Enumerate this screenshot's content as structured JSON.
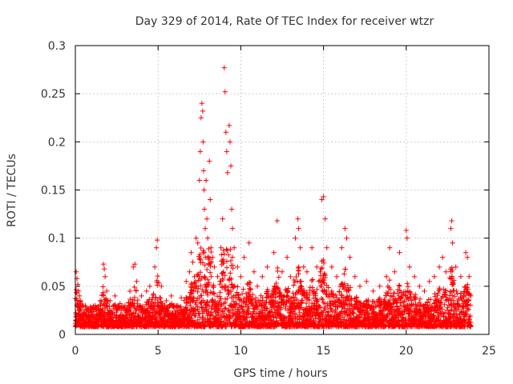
{
  "chart_data": {
    "type": "scatter",
    "title": "Day 329 of 2014, Rate Of TEC Index for receiver wtzr",
    "xlabel": "GPS time / hours",
    "ylabel": "ROTI / TECUs",
    "xlim": [
      0,
      25
    ],
    "ylim": [
      0,
      0.3
    ],
    "xticks": [
      0,
      5,
      10,
      15,
      20,
      25
    ],
    "xtick_labels": [
      "0",
      "5",
      "10",
      "15",
      "20",
      "25"
    ],
    "yticks": [
      0,
      0.05,
      0.1,
      0.15,
      0.2,
      0.25,
      0.3
    ],
    "ytick_labels": [
      "0",
      "0.05",
      "0.1",
      "0.15",
      "0.2",
      "0.25",
      "0.3"
    ],
    "grid": true,
    "marker": "+",
    "series": [
      {
        "name": "ROTI",
        "color": "#ff0000",
        "points": [
          [
            0.05,
            0.065
          ],
          [
            0.1,
            0.058
          ],
          [
            0.15,
            0.052
          ],
          [
            0.2,
            0.045
          ],
          [
            0.25,
            0.04
          ],
          [
            0.3,
            0.035
          ],
          [
            0.1,
            0.03
          ],
          [
            0.2,
            0.025
          ],
          [
            0.3,
            0.02
          ],
          [
            0.4,
            0.018
          ],
          [
            0.6,
            0.03
          ],
          [
            0.8,
            0.025
          ],
          [
            1.0,
            0.028
          ],
          [
            1.2,
            0.03
          ],
          [
            1.5,
            0.035
          ],
          [
            1.7,
            0.073
          ],
          [
            1.75,
            0.068
          ],
          [
            1.8,
            0.06
          ],
          [
            1.9,
            0.045
          ],
          [
            2.1,
            0.035
          ],
          [
            2.4,
            0.04
          ],
          [
            2.7,
            0.032
          ],
          [
            3.0,
            0.03
          ],
          [
            3.3,
            0.045
          ],
          [
            3.5,
            0.07
          ],
          [
            3.6,
            0.073
          ],
          [
            3.7,
            0.055
          ],
          [
            4.0,
            0.04
          ],
          [
            4.3,
            0.045
          ],
          [
            4.5,
            0.05
          ],
          [
            4.8,
            0.07
          ],
          [
            4.9,
            0.09
          ],
          [
            4.95,
            0.098
          ],
          [
            5.2,
            0.05
          ],
          [
            5.5,
            0.035
          ],
          [
            5.8,
            0.04
          ],
          [
            6.1,
            0.03
          ],
          [
            6.4,
            0.038
          ],
          [
            6.7,
            0.055
          ],
          [
            6.9,
            0.065
          ],
          [
            7.0,
            0.085
          ],
          [
            7.1,
            0.075
          ],
          [
            7.2,
            0.06
          ],
          [
            7.3,
            0.1
          ],
          [
            7.4,
            0.095
          ],
          [
            7.5,
            0.16
          ],
          [
            7.55,
            0.19
          ],
          [
            7.6,
            0.225
          ],
          [
            7.65,
            0.24
          ],
          [
            7.7,
            0.232
          ],
          [
            7.72,
            0.2
          ],
          [
            7.75,
            0.17
          ],
          [
            7.78,
            0.15
          ],
          [
            7.8,
            0.13
          ],
          [
            7.85,
            0.11
          ],
          [
            7.9,
            0.16
          ],
          [
            7.95,
            0.12
          ],
          [
            8.0,
            0.1
          ],
          [
            8.1,
            0.18
          ],
          [
            8.15,
            0.14
          ],
          [
            8.2,
            0.09
          ],
          [
            8.3,
            0.08
          ],
          [
            8.4,
            0.07
          ],
          [
            8.6,
            0.06
          ],
          [
            8.8,
            0.09
          ],
          [
            8.9,
            0.12
          ],
          [
            9.0,
            0.277
          ],
          [
            9.05,
            0.252
          ],
          [
            9.1,
            0.21
          ],
          [
            9.15,
            0.19
          ],
          [
            9.2,
            0.168
          ],
          [
            9.3,
            0.217
          ],
          [
            9.35,
            0.2
          ],
          [
            9.4,
            0.175
          ],
          [
            9.45,
            0.13
          ],
          [
            9.5,
            0.11
          ],
          [
            9.6,
            0.09
          ],
          [
            9.8,
            0.07
          ],
          [
            10.0,
            0.06
          ],
          [
            10.2,
            0.08
          ],
          [
            10.5,
            0.095
          ],
          [
            10.8,
            0.065
          ],
          [
            11.0,
            0.05
          ],
          [
            11.3,
            0.06
          ],
          [
            11.6,
            0.07
          ],
          [
            12.0,
            0.085
          ],
          [
            12.2,
            0.118
          ],
          [
            12.5,
            0.065
          ],
          [
            12.8,
            0.08
          ],
          [
            13.0,
            0.06
          ],
          [
            13.3,
            0.1
          ],
          [
            13.45,
            0.12
          ],
          [
            13.5,
            0.11
          ],
          [
            13.6,
            0.09
          ],
          [
            13.8,
            0.07
          ],
          [
            14.0,
            0.065
          ],
          [
            14.3,
            0.09
          ],
          [
            14.6,
            0.07
          ],
          [
            14.9,
            0.14
          ],
          [
            15.0,
            0.143
          ],
          [
            15.1,
            0.12
          ],
          [
            15.2,
            0.09
          ],
          [
            15.5,
            0.07
          ],
          [
            15.8,
            0.06
          ],
          [
            16.1,
            0.09
          ],
          [
            16.3,
            0.11
          ],
          [
            16.4,
            0.1
          ],
          [
            16.6,
            0.08
          ],
          [
            16.9,
            0.06
          ],
          [
            17.2,
            0.05
          ],
          [
            17.6,
            0.055
          ],
          [
            18.0,
            0.045
          ],
          [
            18.4,
            0.05
          ],
          [
            18.8,
            0.06
          ],
          [
            19.0,
            0.09
          ],
          [
            19.3,
            0.065
          ],
          [
            19.6,
            0.085
          ],
          [
            20.0,
            0.108
          ],
          [
            20.05,
            0.1
          ],
          [
            20.2,
            0.07
          ],
          [
            20.5,
            0.06
          ],
          [
            20.8,
            0.05
          ],
          [
            21.1,
            0.045
          ],
          [
            21.4,
            0.055
          ],
          [
            21.7,
            0.06
          ],
          [
            22.0,
            0.07
          ],
          [
            22.2,
            0.08
          ],
          [
            22.4,
            0.065
          ],
          [
            22.7,
            0.11
          ],
          [
            22.75,
            0.118
          ],
          [
            22.8,
            0.095
          ],
          [
            23.0,
            0.07
          ],
          [
            23.3,
            0.06
          ],
          [
            23.6,
            0.085
          ],
          [
            23.7,
            0.08
          ],
          [
            23.8,
            0.06
          ],
          [
            23.9,
            0.04
          ],
          [
            0.4,
            0.01
          ],
          [
            1.0,
            0.012
          ],
          [
            2.0,
            0.01
          ],
          [
            3.0,
            0.009
          ],
          [
            4.0,
            0.011
          ],
          [
            5.0,
            0.01
          ],
          [
            6.0,
            0.012
          ],
          [
            7.0,
            0.011
          ],
          [
            8.0,
            0.012
          ],
          [
            9.0,
            0.011
          ],
          [
            10.0,
            0.01
          ],
          [
            11.0,
            0.012
          ],
          [
            12.0,
            0.01
          ],
          [
            13.0,
            0.012
          ],
          [
            14.0,
            0.011
          ],
          [
            15.0,
            0.01
          ],
          [
            16.0,
            0.012
          ],
          [
            17.0,
            0.01
          ],
          [
            18.0,
            0.011
          ],
          [
            19.0,
            0.012
          ],
          [
            20.0,
            0.01
          ],
          [
            21.0,
            0.012
          ],
          [
            22.0,
            0.011
          ],
          [
            23.0,
            0.01
          ],
          [
            23.8,
            0.012
          ]
        ]
      }
    ],
    "dense_band": {
      "x_start": 0,
      "x_end": 23.9,
      "x_step": 0.025,
      "note": "dense scatter of ROTI samples filling roughly 0.01 to 0.04 TECU/s across the full day"
    }
  }
}
